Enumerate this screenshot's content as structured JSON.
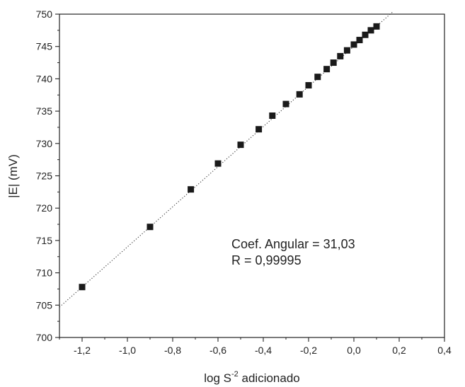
{
  "chart_data": {
    "type": "scatter",
    "title": "",
    "xlabel_main": "log S",
    "xlabel_sup": "-2",
    "xlabel_rest": " adicionado",
    "ylabel": "|E| (mV)",
    "xlim": [
      -1.3,
      0.4
    ],
    "ylim": [
      700,
      750
    ],
    "xticks": [
      -1.2,
      -1.0,
      -0.8,
      -0.6,
      -0.4,
      -0.2,
      0.0,
      0.2,
      0.4
    ],
    "xtick_labels": [
      "-1,2",
      "-1,0",
      "-0,8",
      "-0,6",
      "-0,4",
      "-0,2",
      "0,0",
      "0,2",
      "0,4"
    ],
    "yticks": [
      700,
      705,
      710,
      715,
      720,
      725,
      730,
      735,
      740,
      745,
      750
    ],
    "ytick_labels": [
      "700",
      "705",
      "710",
      "715",
      "720",
      "725",
      "730",
      "735",
      "740",
      "745",
      "750"
    ],
    "series": [
      {
        "marker": "square",
        "color": "#1a1a1a",
        "x": [
          -1.2,
          -0.9,
          -0.72,
          -0.6,
          -0.5,
          -0.42,
          -0.36,
          -0.3,
          -0.24,
          -0.2,
          -0.16,
          -0.12,
          -0.09,
          -0.06,
          -0.03,
          0.0,
          0.025,
          0.05,
          0.075,
          0.1
        ],
        "y": [
          707.8,
          717.1,
          722.9,
          726.9,
          729.8,
          732.2,
          734.3,
          736.1,
          737.6,
          739.0,
          740.3,
          741.5,
          742.5,
          743.5,
          744.4,
          745.3,
          746.0,
          746.8,
          747.5,
          748.1
        ]
      }
    ],
    "fit_line": {
      "style": "dotted",
      "x": [
        -1.3,
        0.17
      ],
      "y": [
        704.7,
        750.3
      ]
    },
    "annotations": [
      "Coef. Angular = 31,03",
      "R = 0,99995"
    ]
  }
}
